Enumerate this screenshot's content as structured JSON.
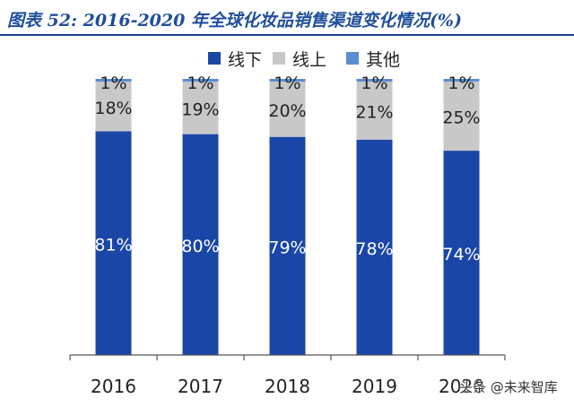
{
  "header": {
    "title": "图表 52:  2016-2020 年全球化妆品销售渠道变化情况(%)",
    "rule_color": "#1f3f8c"
  },
  "watermark": {
    "label": "头条 @未来智库"
  },
  "chart_data": {
    "type": "bar",
    "stacked": true,
    "stack_mode": "percent",
    "categories": [
      "2016",
      "2017",
      "2018",
      "2019",
      "2020"
    ],
    "series": [
      {
        "name": "线下",
        "color": "#1a46a8",
        "values": [
          81,
          80,
          79,
          78,
          74
        ],
        "labels": [
          "81%",
          "80%",
          "79%",
          "78%",
          "74%"
        ]
      },
      {
        "name": "线上",
        "color": "#c8c8c8",
        "values": [
          18,
          19,
          20,
          21,
          25
        ],
        "labels": [
          "18%",
          "19%",
          "20%",
          "21%",
          "25%"
        ]
      },
      {
        "name": "其他",
        "color": "#5b8ed0",
        "values": [
          1,
          1,
          1,
          1,
          1
        ],
        "labels": [
          "1%",
          "1%",
          "1%",
          "1%",
          "1%"
        ]
      }
    ],
    "ylim": [
      0,
      100
    ],
    "legend_position": "top-center",
    "grid": false
  }
}
